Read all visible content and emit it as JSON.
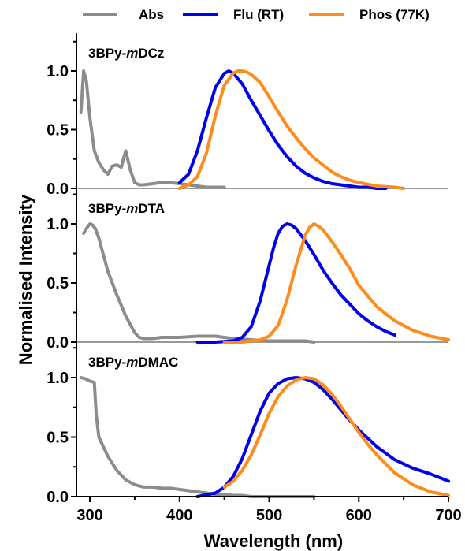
{
  "chart_data": {
    "type": "line",
    "xlabel": "Wavelength (nm)",
    "ylabel": "Normalised Intensity",
    "xlim": [
      285,
      700
    ],
    "x_ticks": [
      "300",
      "400",
      "500",
      "600",
      "700"
    ],
    "ylim": [
      0,
      1.3
    ],
    "y_ticks": [
      "0.0",
      "0.5",
      "1.0"
    ],
    "grid": false,
    "legend": {
      "placement": "top",
      "entries": [
        "Abs",
        "Flu (RT)",
        "Phos (77K)"
      ]
    },
    "colors": {
      "Abs": "#8c8c8c",
      "Flu (RT)": "#0000ee",
      "Phos (77K)": "#ff8c1a"
    },
    "panels": [
      {
        "label_prefix": "3BPy-",
        "label_italic": "m",
        "label_suffix": "DCz",
        "series": [
          {
            "name": "Abs",
            "x": [
              290,
              293,
              296,
              300,
              305,
              310,
              315,
              320,
              325,
              330,
              335,
              338,
              340,
              345,
              350,
              355,
              360,
              370,
              380,
              390,
              400,
              410,
              420,
              430,
              440,
              450
            ],
            "y": [
              0.65,
              1.0,
              0.92,
              0.6,
              0.32,
              0.22,
              0.16,
              0.12,
              0.19,
              0.2,
              0.18,
              0.27,
              0.32,
              0.16,
              0.05,
              0.03,
              0.03,
              0.04,
              0.05,
              0.05,
              0.04,
              0.03,
              0.02,
              0.01,
              0.01,
              0.01
            ]
          },
          {
            "name": "Flu (RT)",
            "x": [
              400,
              410,
              420,
              430,
              440,
              450,
              455,
              460,
              470,
              480,
              490,
              500,
              510,
              520,
              530,
              540,
              550,
              560,
              570,
              580,
              590,
              600,
              610,
              620,
              630
            ],
            "y": [
              0.05,
              0.12,
              0.32,
              0.6,
              0.86,
              0.98,
              1.0,
              0.98,
              0.89,
              0.75,
              0.62,
              0.49,
              0.37,
              0.27,
              0.19,
              0.13,
              0.09,
              0.06,
              0.04,
              0.03,
              0.02,
              0.01,
              0.01,
              0.0,
              0.0
            ]
          },
          {
            "name": "Phos (77K)",
            "x": [
              400,
              410,
              420,
              430,
              440,
              450,
              460,
              465,
              470,
              475,
              480,
              490,
              500,
              510,
              520,
              530,
              540,
              550,
              560,
              570,
              580,
              590,
              600,
              620,
              640,
              650
            ],
            "y": [
              0.0,
              0.03,
              0.1,
              0.3,
              0.62,
              0.88,
              0.98,
              1.0,
              1.0,
              0.99,
              0.97,
              0.9,
              0.78,
              0.65,
              0.53,
              0.43,
              0.34,
              0.26,
              0.2,
              0.14,
              0.1,
              0.07,
              0.05,
              0.02,
              0.01,
              0.0
            ]
          }
        ]
      },
      {
        "label_prefix": "3BPy-",
        "label_italic": "m",
        "label_suffix": "DTA",
        "series": [
          {
            "name": "Abs",
            "x": [
              293,
              297,
              300,
              303,
              306,
              310,
              315,
              320,
              330,
              340,
              350,
              355,
              360,
              370,
              380,
              400,
              420,
              440,
              460,
              480,
              500,
              520,
              540,
              550
            ],
            "y": [
              0.92,
              0.97,
              1.0,
              0.99,
              0.96,
              0.88,
              0.74,
              0.6,
              0.4,
              0.22,
              0.08,
              0.04,
              0.03,
              0.03,
              0.04,
              0.04,
              0.05,
              0.05,
              0.03,
              0.02,
              0.01,
              0.01,
              0.01,
              0.0
            ]
          },
          {
            "name": "Flu (RT)",
            "x": [
              420,
              440,
              460,
              470,
              480,
              490,
              500,
              505,
              510,
              515,
              520,
              525,
              530,
              540,
              550,
              560,
              570,
              580,
              590,
              600,
              610,
              620,
              630,
              640
            ],
            "y": [
              0.0,
              0.0,
              0.01,
              0.04,
              0.13,
              0.35,
              0.65,
              0.8,
              0.92,
              0.98,
              1.0,
              0.99,
              0.96,
              0.86,
              0.74,
              0.61,
              0.5,
              0.4,
              0.32,
              0.24,
              0.18,
              0.13,
              0.09,
              0.06
            ]
          },
          {
            "name": "Phos (77K)",
            "x": [
              450,
              470,
              490,
              500,
              510,
              520,
              530,
              540,
              545,
              550,
              555,
              560,
              570,
              580,
              590,
              600,
              620,
              640,
              660,
              680,
              700
            ],
            "y": [
              0.0,
              0.0,
              0.02,
              0.05,
              0.14,
              0.36,
              0.65,
              0.9,
              0.97,
              1.0,
              0.98,
              0.95,
              0.85,
              0.74,
              0.62,
              0.48,
              0.3,
              0.18,
              0.1,
              0.05,
              0.02
            ]
          }
        ]
      },
      {
        "label_prefix": "3BPy-",
        "label_italic": "m",
        "label_suffix": "DMAC",
        "series": [
          {
            "name": "Abs",
            "x": [
              290,
              295,
              300,
              305,
              307,
              310,
              315,
              320,
              330,
              340,
              350,
              360,
              370,
              380,
              390,
              400,
              410,
              420,
              430,
              440,
              450,
              460,
              470,
              480,
              490,
              500,
              520,
              540,
              550
            ],
            "y": [
              1.0,
              0.99,
              0.97,
              0.96,
              0.7,
              0.5,
              0.42,
              0.34,
              0.22,
              0.14,
              0.1,
              0.08,
              0.08,
              0.07,
              0.07,
              0.06,
              0.05,
              0.04,
              0.03,
              0.02,
              0.02,
              0.01,
              0.01,
              0.0,
              0.0,
              0.0,
              0.0,
              0.0,
              0.0
            ]
          },
          {
            "name": "Flu (RT)",
            "x": [
              420,
              440,
              450,
              460,
              470,
              480,
              490,
              500,
              510,
              520,
              530,
              540,
              550,
              560,
              570,
              580,
              590,
              600,
              620,
              640,
              660,
              680,
              700
            ],
            "y": [
              0.0,
              0.03,
              0.08,
              0.17,
              0.32,
              0.52,
              0.72,
              0.87,
              0.95,
              0.99,
              1.0,
              0.99,
              0.96,
              0.9,
              0.82,
              0.73,
              0.64,
              0.56,
              0.42,
              0.31,
              0.24,
              0.19,
              0.13
            ]
          },
          {
            "name": "Phos (77K)",
            "x": [
              450,
              460,
              470,
              480,
              490,
              500,
              510,
              520,
              530,
              540,
              550,
              560,
              570,
              580,
              590,
              600,
              610,
              620,
              640,
              660,
              680,
              700
            ],
            "y": [
              0.08,
              0.13,
              0.22,
              0.35,
              0.52,
              0.7,
              0.84,
              0.93,
              0.98,
              1.0,
              0.99,
              0.94,
              0.86,
              0.76,
              0.65,
              0.54,
              0.44,
              0.35,
              0.2,
              0.1,
              0.04,
              0.01
            ]
          }
        ]
      }
    ]
  }
}
